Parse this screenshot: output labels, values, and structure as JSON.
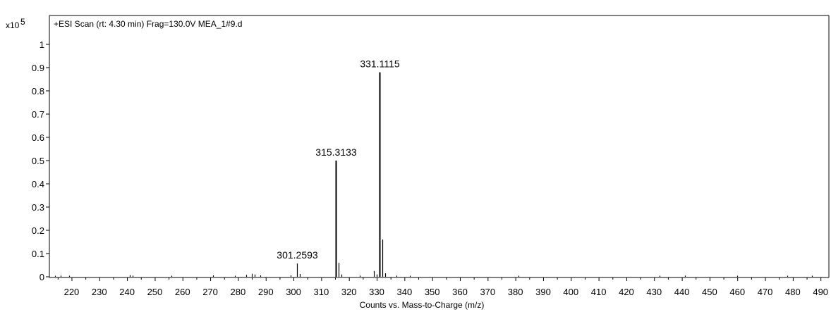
{
  "chart_data": {
    "type": "bar",
    "title": "+ESI Scan (rt: 4.30 min) Frag=130.0V MEA_1#9.d",
    "xlabel": "Counts vs. Mass-to-Charge (m/z)",
    "ylabel": "",
    "y_multiplier": "x10",
    "y_multiplier_exp": "5",
    "xlim": [
      212,
      493
    ],
    "ylim": [
      0,
      1.05
    ],
    "x_major_ticks": [
      220,
      230,
      240,
      250,
      260,
      270,
      280,
      290,
      300,
      310,
      320,
      330,
      340,
      350,
      360,
      370,
      380,
      390,
      400,
      410,
      420,
      430,
      440,
      450,
      460,
      470,
      480,
      490
    ],
    "y_ticks": [
      0,
      0.1,
      0.2,
      0.3,
      0.4,
      0.5,
      0.6,
      0.7,
      0.8,
      0.9,
      1
    ],
    "y_tick_labels": [
      "0",
      "0.1",
      "0.2",
      "0.3",
      "0.4",
      "0.5",
      "0.6",
      "0.7",
      "0.8",
      "0.9",
      "1"
    ],
    "grid": false,
    "peaks": [
      {
        "mz": 214.0,
        "intensity": 0.004
      },
      {
        "mz": 216.0,
        "intensity": 0.005
      },
      {
        "mz": 219.0,
        "intensity": 0.004
      },
      {
        "mz": 241.0,
        "intensity": 0.007
      },
      {
        "mz": 242.0,
        "intensity": 0.005
      },
      {
        "mz": 256.0,
        "intensity": 0.003
      },
      {
        "mz": 271.0,
        "intensity": 0.006
      },
      {
        "mz": 279.0,
        "intensity": 0.004
      },
      {
        "mz": 283.0,
        "intensity": 0.008
      },
      {
        "mz": 285.0,
        "intensity": 0.013
      },
      {
        "mz": 286.0,
        "intensity": 0.01
      },
      {
        "mz": 288.0,
        "intensity": 0.006
      },
      {
        "mz": 299.0,
        "intensity": 0.006
      },
      {
        "mz": 301.2593,
        "intensity": 0.057,
        "label": "301.2593"
      },
      {
        "mz": 302.3,
        "intensity": 0.012
      },
      {
        "mz": 315.3133,
        "intensity": 0.5,
        "label": "315.3133"
      },
      {
        "mz": 316.3,
        "intensity": 0.06
      },
      {
        "mz": 317.3,
        "intensity": 0.01
      },
      {
        "mz": 324.0,
        "intensity": 0.005
      },
      {
        "mz": 329.0,
        "intensity": 0.025
      },
      {
        "mz": 330.0,
        "intensity": 0.01
      },
      {
        "mz": 331.1115,
        "intensity": 0.88,
        "label": "331.1115"
      },
      {
        "mz": 332.1,
        "intensity": 0.16
      },
      {
        "mz": 333.1,
        "intensity": 0.015
      },
      {
        "mz": 337.0,
        "intensity": 0.005
      },
      {
        "mz": 342.0,
        "intensity": 0.004
      },
      {
        "mz": 381.0,
        "intensity": 0.004
      },
      {
        "mz": 432.0,
        "intensity": 0.004
      },
      {
        "mz": 441.0,
        "intensity": 0.005
      },
      {
        "mz": 460.0,
        "intensity": 0.003
      },
      {
        "mz": 478.0,
        "intensity": 0.003
      },
      {
        "mz": 487.0,
        "intensity": 0.003
      }
    ]
  }
}
